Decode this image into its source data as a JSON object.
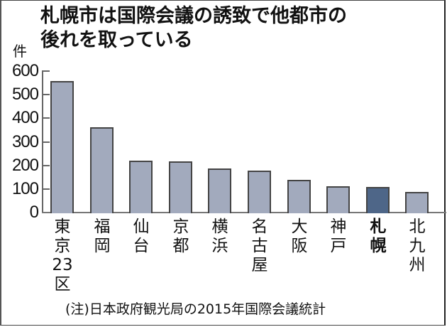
{
  "title_lines": [
    "札幌市は国際会議の誘致で他都市の",
    "後れを取っている"
  ],
  "unit": "件",
  "note": "(注)日本政府観光局の2015年国際会議統計",
  "colors": {
    "bar": "#a2aabd",
    "highlight": "#4e6688",
    "outline": "#444444"
  },
  "chart_data": {
    "type": "bar",
    "title": "札幌市は国際会議の誘致で他都市の後れを取っている",
    "xlabel": "",
    "ylabel": "件",
    "ylim": [
      0,
      600
    ],
    "yticks": [
      0,
      100,
      200,
      300,
      400,
      500,
      600
    ],
    "grid": false,
    "categories": [
      "東京23区",
      "福岡",
      "仙台",
      "京都",
      "横浜",
      "名古屋",
      "大阪",
      "神戸",
      "札幌",
      "北九州"
    ],
    "values": [
      557,
      363,
      221,
      218,
      187,
      179,
      140,
      113,
      108,
      86
    ],
    "highlight": "札幌",
    "source": "(注)日本政府観光局の2015年国際会議統計"
  },
  "labels": [
    [
      "東",
      "京",
      "23",
      "区"
    ],
    [
      "福",
      "岡"
    ],
    [
      "仙",
      "台"
    ],
    [
      "京",
      "都"
    ],
    [
      "横",
      "浜"
    ],
    [
      "名",
      "古",
      "屋"
    ],
    [
      "大",
      "阪"
    ],
    [
      "神",
      "戸"
    ],
    [
      "札",
      "幌"
    ],
    [
      "北",
      "九",
      "州"
    ]
  ]
}
